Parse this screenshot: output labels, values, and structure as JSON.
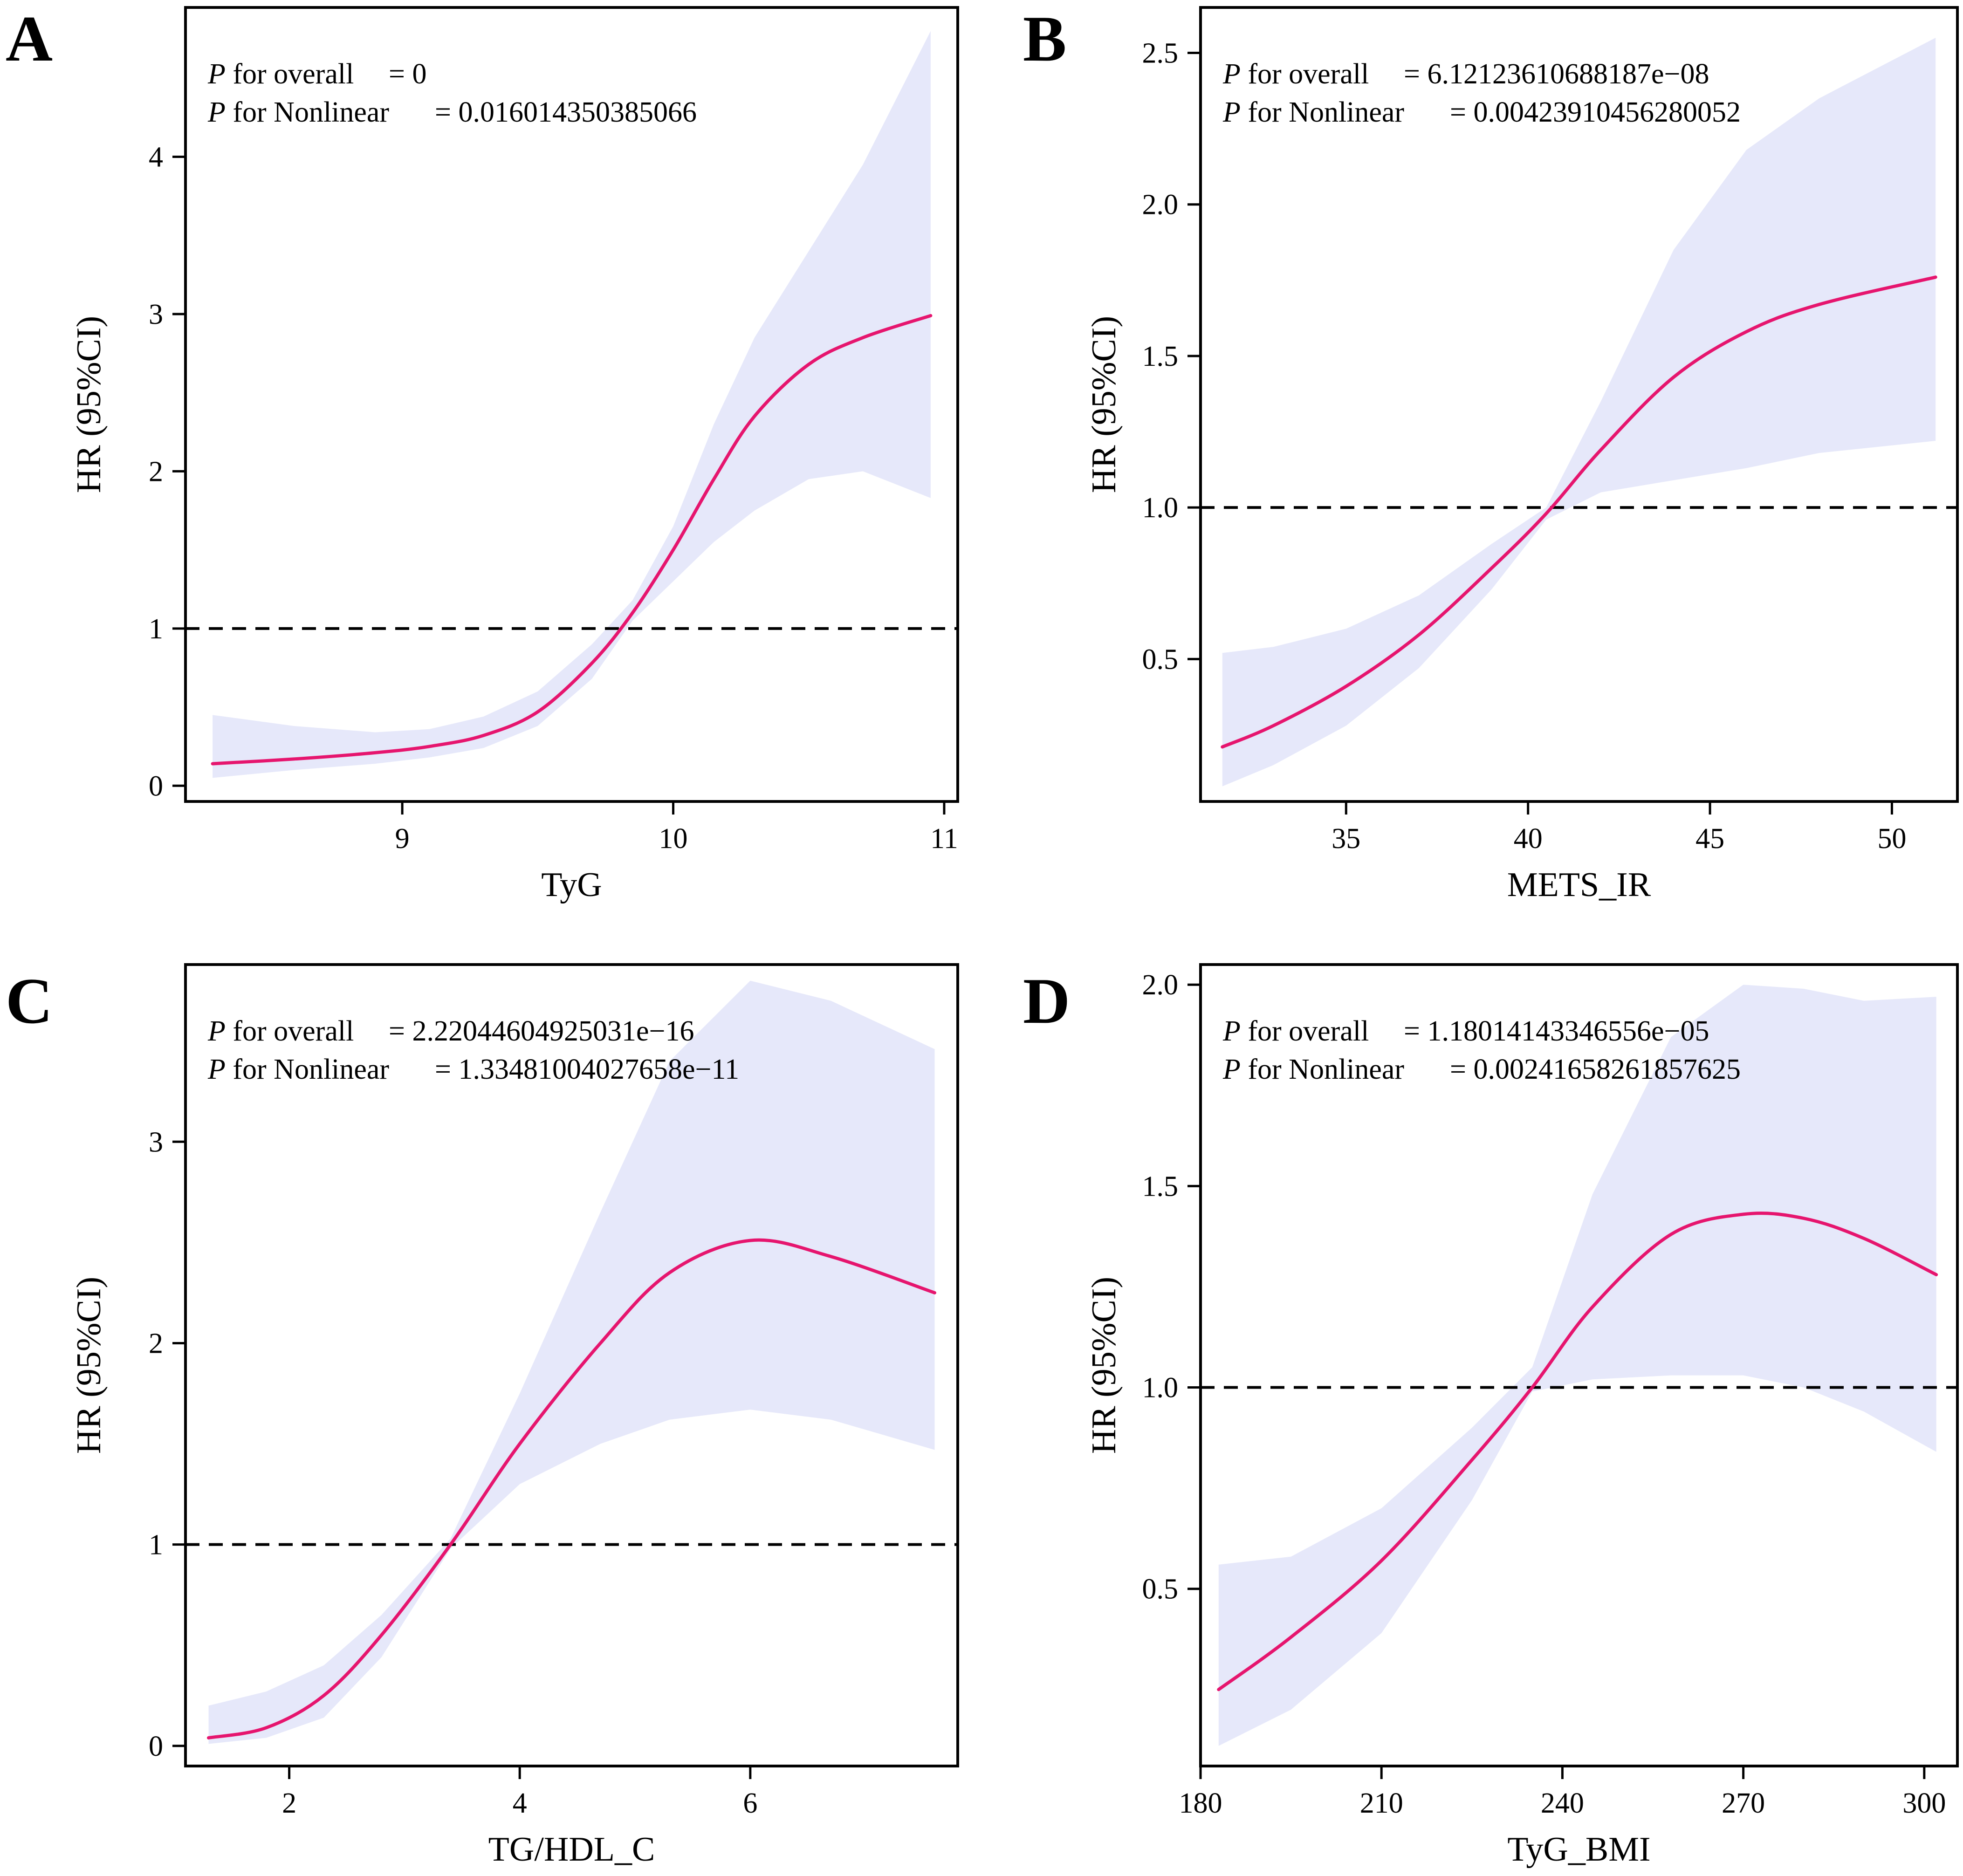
{
  "figure": {
    "colors": {
      "curve": "#e6156e",
      "band": "#e6e8fa",
      "axis": "#000000",
      "reference": "#000000"
    }
  },
  "chart_data": [
    {
      "panel": "A",
      "type": "line",
      "xlabel": "TyG",
      "ylabel": "HR (95%CI)",
      "xlim": [
        8.2,
        11.05
      ],
      "ylim": [
        -0.1,
        4.95
      ],
      "xticks": [
        9,
        10,
        11
      ],
      "xtick_labels": [
        "9",
        "10",
        "11"
      ],
      "yticks": [
        0,
        1,
        2,
        3,
        4
      ],
      "ytick_labels": [
        "0",
        "1",
        "2",
        "3",
        "4"
      ],
      "reference_y": 1,
      "annotation": {
        "overall_prefix": "P",
        "overall_label": "for overall",
        "overall_value": "= 0",
        "nonlinear_prefix": "P",
        "nonlinear_label": "for Nonlinear",
        "nonlinear_value": "= 0.016014350385066"
      },
      "series": [
        {
          "name": "HR",
          "x": [
            8.3,
            8.6,
            8.9,
            9.1,
            9.3,
            9.5,
            9.7,
            9.85,
            10.0,
            10.15,
            10.3,
            10.5,
            10.7,
            10.95
          ],
          "y": [
            0.14,
            0.17,
            0.21,
            0.25,
            0.32,
            0.47,
            0.78,
            1.1,
            1.5,
            1.95,
            2.35,
            2.68,
            2.85,
            2.99
          ]
        },
        {
          "name": "CI lower",
          "x": [
            8.3,
            8.6,
            8.9,
            9.1,
            9.3,
            9.5,
            9.7,
            9.85,
            10.0,
            10.15,
            10.3,
            10.5,
            10.7,
            10.95
          ],
          "y": [
            0.05,
            0.1,
            0.14,
            0.18,
            0.24,
            0.38,
            0.68,
            1.05,
            1.3,
            1.55,
            1.75,
            1.95,
            2.0,
            1.83
          ]
        },
        {
          "name": "CI upper",
          "x": [
            8.3,
            8.6,
            8.9,
            9.1,
            9.3,
            9.5,
            9.7,
            9.85,
            10.0,
            10.15,
            10.3,
            10.5,
            10.7,
            10.95
          ],
          "y": [
            0.45,
            0.38,
            0.34,
            0.36,
            0.44,
            0.6,
            0.9,
            1.18,
            1.65,
            2.3,
            2.85,
            3.4,
            3.95,
            4.8
          ]
        }
      ]
    },
    {
      "panel": "B",
      "type": "line",
      "xlabel": "METS_IR",
      "ylabel": "HR (95%CI)",
      "xlim": [
        31,
        51.8
      ],
      "ylim": [
        0.03,
        2.65
      ],
      "xticks": [
        35,
        40,
        45,
        50
      ],
      "xtick_labels": [
        "35",
        "40",
        "45",
        "50"
      ],
      "yticks": [
        0.5,
        1.0,
        1.5,
        2.0,
        2.5
      ],
      "ytick_labels": [
        "0.5",
        "1.0",
        "1.5",
        "2.0",
        "2.5"
      ],
      "reference_y": 1.0,
      "annotation": {
        "overall_prefix": "P",
        "overall_label": "for overall",
        "overall_value": "= 6.12123610688187e−08",
        "nonlinear_prefix": "P",
        "nonlinear_label": "for Nonlinear",
        "nonlinear_value": "= 0.00423910456280052"
      },
      "series": [
        {
          "name": "HR",
          "x": [
            31.6,
            33,
            35,
            37,
            39,
            40.5,
            42,
            44,
            46,
            48,
            51.2
          ],
          "y": [
            0.21,
            0.28,
            0.41,
            0.58,
            0.8,
            0.98,
            1.19,
            1.43,
            1.58,
            1.67,
            1.76
          ]
        },
        {
          "name": "CI lower",
          "x": [
            31.6,
            33,
            35,
            37,
            39,
            40.5,
            42,
            44,
            46,
            48,
            51.2
          ],
          "y": [
            0.08,
            0.15,
            0.28,
            0.47,
            0.73,
            0.96,
            1.05,
            1.09,
            1.13,
            1.18,
            1.22
          ]
        },
        {
          "name": "CI upper",
          "x": [
            31.6,
            33,
            35,
            37,
            39,
            40.5,
            42,
            44,
            46,
            48,
            51.2
          ],
          "y": [
            0.52,
            0.54,
            0.6,
            0.71,
            0.88,
            1.0,
            1.35,
            1.85,
            2.18,
            2.35,
            2.55
          ]
        }
      ]
    },
    {
      "panel": "C",
      "type": "line",
      "xlabel": "TG/HDL_C",
      "ylabel": "HR (95%CI)",
      "xlim": [
        1.1,
        7.8
      ],
      "ylim": [
        -0.1,
        3.88
      ],
      "xticks": [
        2,
        4,
        6
      ],
      "xtick_labels": [
        "2",
        "4",
        "6"
      ],
      "yticks": [
        0,
        1,
        2,
        3
      ],
      "ytick_labels": [
        "0",
        "1",
        "2",
        "3"
      ],
      "reference_y": 1,
      "annotation": {
        "overall_prefix": "P",
        "overall_label": "for overall",
        "overall_value": "= 2.22044604925031e−16",
        "nonlinear_prefix": "P",
        "nonlinear_label": "for Nonlinear",
        "nonlinear_value": "= 1.33481004027658e−11"
      },
      "series": [
        {
          "name": "HR",
          "x": [
            1.3,
            1.8,
            2.3,
            2.8,
            3.4,
            4.0,
            4.7,
            5.3,
            6.0,
            6.7,
            7.6
          ],
          "y": [
            0.04,
            0.09,
            0.25,
            0.55,
            1.0,
            1.5,
            2.0,
            2.35,
            2.51,
            2.43,
            2.25
          ]
        },
        {
          "name": "CI lower",
          "x": [
            1.3,
            1.8,
            2.3,
            2.8,
            3.4,
            4.0,
            4.7,
            5.3,
            6.0,
            6.7,
            7.6
          ],
          "y": [
            0.01,
            0.04,
            0.14,
            0.44,
            0.98,
            1.3,
            1.5,
            1.62,
            1.67,
            1.62,
            1.47
          ]
        },
        {
          "name": "CI upper",
          "x": [
            1.3,
            1.8,
            2.3,
            2.8,
            3.4,
            4.0,
            4.7,
            5.3,
            6.0,
            6.7,
            7.6
          ],
          "y": [
            0.2,
            0.27,
            0.4,
            0.65,
            1.03,
            1.75,
            2.65,
            3.4,
            3.8,
            3.7,
            3.46
          ]
        }
      ]
    },
    {
      "panel": "D",
      "type": "line",
      "xlabel": "TyG_BMI",
      "ylabel": "HR (95%CI)",
      "xlim": [
        180,
        305.5
      ],
      "ylim": [
        0.06,
        2.05
      ],
      "xticks": [
        180,
        210,
        240,
        270,
        300
      ],
      "xtick_labels": [
        "180",
        "210",
        "240",
        "270",
        "300"
      ],
      "yticks": [
        0.5,
        1.0,
        1.5,
        2.0
      ],
      "ytick_labels": [
        "0.5",
        "1.0",
        "1.5",
        "2.0"
      ],
      "reference_y": 1.0,
      "annotation": {
        "overall_prefix": "P",
        "overall_label": "for overall",
        "overall_value": "= 1.18014143346556e−05",
        "nonlinear_prefix": "P",
        "nonlinear_label": "for Nonlinear",
        "nonlinear_value": "= 0.00241658261857625"
      },
      "series": [
        {
          "name": "HR",
          "x": [
            183,
            195,
            210,
            225,
            235,
            245,
            258,
            270,
            280,
            290,
            302
          ],
          "y": [
            0.25,
            0.38,
            0.57,
            0.82,
            1.0,
            1.2,
            1.38,
            1.43,
            1.42,
            1.37,
            1.28
          ]
        },
        {
          "name": "CI lower",
          "x": [
            183,
            195,
            210,
            225,
            235,
            245,
            258,
            270,
            280,
            290,
            302
          ],
          "y": [
            0.11,
            0.2,
            0.39,
            0.72,
            0.99,
            1.02,
            1.03,
            1.03,
            1.0,
            0.94,
            0.84
          ]
        },
        {
          "name": "CI upper",
          "x": [
            183,
            195,
            210,
            225,
            235,
            245,
            258,
            270,
            280,
            290,
            302
          ],
          "y": [
            0.56,
            0.58,
            0.7,
            0.9,
            1.05,
            1.48,
            1.87,
            2.0,
            1.99,
            1.96,
            1.97
          ]
        }
      ]
    }
  ]
}
